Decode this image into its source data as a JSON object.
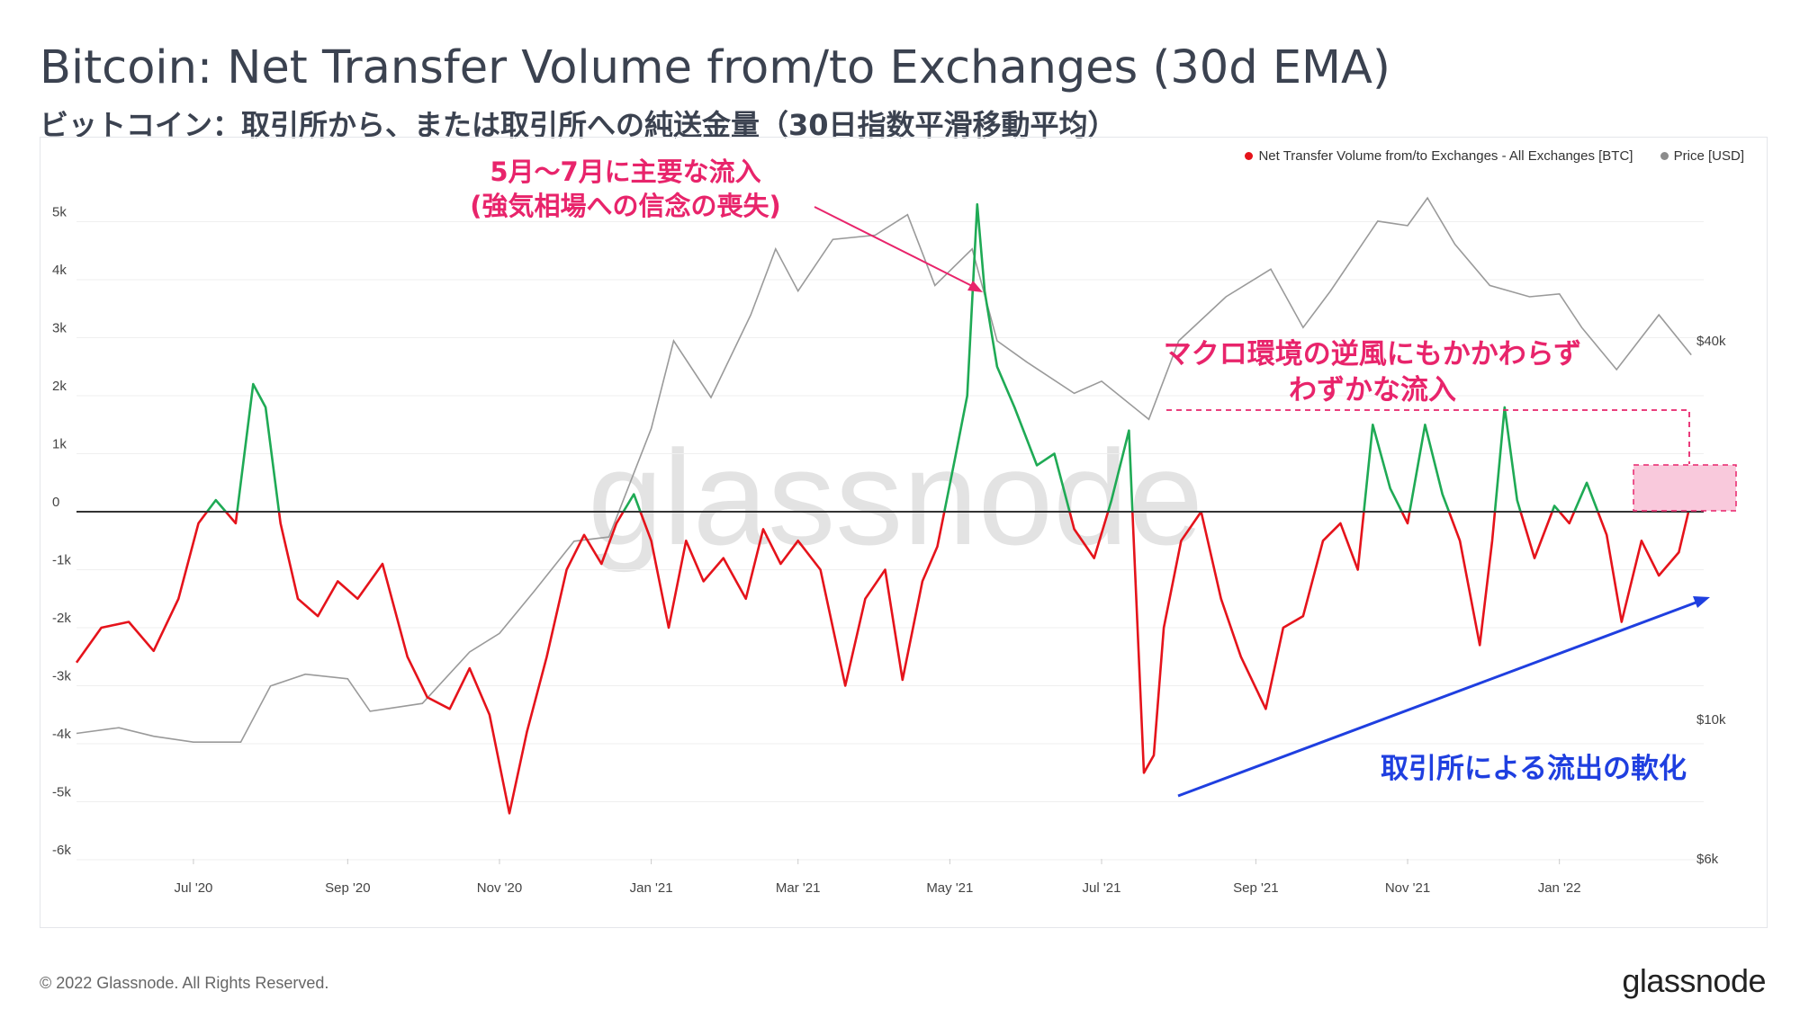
{
  "header": {
    "title": "Bitcoin: Net Transfer Volume from/to Exchanges (30d EMA)",
    "subtitle": "ビットコイン：取引所から、または取引所への純送金量（30日指数平滑移動平均）"
  },
  "legend": {
    "net_label": "Net Transfer Volume from/to Exchanges - All Exchanges [BTC]",
    "price_label": "Price [USD]"
  },
  "annotations": {
    "inflow_line1": "5月〜7月に主要な流入",
    "inflow_line2": "(強気相場への信念の喪失)",
    "macro_line1": "マクロ環境の逆風にもかかわらず",
    "macro_line2": "わずかな流入",
    "outflow": "取引所による流出の軟化"
  },
  "watermark": "glassnode",
  "footer": {
    "copyright": "© 2022 Glassnode. All Rights Reserved.",
    "logo": "glassnode"
  },
  "colors": {
    "positive": "#1faa55",
    "negative": "#e5131b",
    "price": "#9a9a9a",
    "zero_line": "#333333",
    "annotation_pink": "#e8246b",
    "annotation_blue": "#1f3fe0",
    "highlight_fill": "#f9c9dc"
  },
  "chart_data": {
    "type": "line",
    "x_ticks": [
      "Jul '20",
      "Sep '20",
      "Nov '20",
      "Jan '21",
      "Mar '21",
      "May '21",
      "Jul '21",
      "Sep '21",
      "Nov '21",
      "Jan '22"
    ],
    "y_left_ticks": [
      "5k",
      "4k",
      "3k",
      "2k",
      "1k",
      "0",
      "-1k",
      "-2k",
      "-3k",
      "-4k",
      "-5k",
      "-6k"
    ],
    "y_right_ticks": [
      "$40k",
      "$10k",
      "$6k"
    ],
    "ylim_left": [
      -6000,
      5400
    ],
    "y_right_scale": "log",
    "xlim": [
      "2020-05-15",
      "2022-02-28"
    ],
    "series": [
      {
        "name": "Net Transfer Volume from/to Exchanges - All Exchanges [BTC]",
        "axis": "left",
        "x": [
          "2020-05-15",
          "2020-05-25",
          "2020-06-05",
          "2020-06-15",
          "2020-06-25",
          "2020-07-03",
          "2020-07-10",
          "2020-07-18",
          "2020-07-25",
          "2020-07-30",
          "2020-08-05",
          "2020-08-12",
          "2020-08-20",
          "2020-08-28",
          "2020-09-05",
          "2020-09-15",
          "2020-09-25",
          "2020-10-03",
          "2020-10-12",
          "2020-10-20",
          "2020-10-28",
          "2020-11-05",
          "2020-11-12",
          "2020-11-20",
          "2020-11-28",
          "2020-12-05",
          "2020-12-12",
          "2020-12-18",
          "2020-12-25",
          "2021-01-01",
          "2021-01-08",
          "2021-01-15",
          "2021-01-22",
          "2021-01-30",
          "2021-02-08",
          "2021-02-15",
          "2021-02-22",
          "2021-03-01",
          "2021-03-10",
          "2021-03-20",
          "2021-03-28",
          "2021-04-05",
          "2021-04-12",
          "2021-04-20",
          "2021-04-26",
          "2021-05-03",
          "2021-05-08",
          "2021-05-12",
          "2021-05-15",
          "2021-05-20",
          "2021-05-27",
          "2021-06-05",
          "2021-06-12",
          "2021-06-20",
          "2021-06-28",
          "2021-07-05",
          "2021-07-12",
          "2021-07-18",
          "2021-07-22",
          "2021-07-26",
          "2021-08-02",
          "2021-08-10",
          "2021-08-18",
          "2021-08-26",
          "2021-09-05",
          "2021-09-12",
          "2021-09-20",
          "2021-09-28",
          "2021-10-05",
          "2021-10-12",
          "2021-10-18",
          "2021-10-25",
          "2021-11-01",
          "2021-11-08",
          "2021-11-15",
          "2021-11-22",
          "2021-11-30",
          "2021-12-05",
          "2021-12-10",
          "2021-12-15",
          "2021-12-22",
          "2021-12-30",
          "2022-01-05",
          "2022-01-12",
          "2022-01-20",
          "2022-01-26",
          "2022-02-03",
          "2022-02-10",
          "2022-02-18",
          "2022-02-23"
        ],
        "y": [
          -2600,
          -2000,
          -1900,
          -2400,
          -1500,
          -200,
          200,
          -200,
          2200,
          1800,
          -200,
          -1500,
          -1800,
          -1200,
          -1500,
          -900,
          -2500,
          -3200,
          -3400,
          -2700,
          -3500,
          -5200,
          -3800,
          -2500,
          -1000,
          -400,
          -900,
          -200,
          300,
          -500,
          -2000,
          -500,
          -1200,
          -800,
          -1500,
          -300,
          -900,
          -500,
          -1000,
          -3000,
          -1500,
          -1000,
          -2900,
          -1200,
          -600,
          900,
          2000,
          5300,
          3800,
          2500,
          1800,
          800,
          1000,
          -300,
          -800,
          200,
          1400,
          -4500,
          -4200,
          -2000,
          -500,
          0,
          -1500,
          -2500,
          -3400,
          -2000,
          -1800,
          -500,
          -200,
          -1000,
          1500,
          400,
          -200,
          1500,
          300,
          -500,
          -2300,
          -500,
          1800,
          200,
          -800,
          100,
          -200,
          500,
          -400,
          -1900,
          -500,
          -1100,
          -700,
          200
        ]
      },
      {
        "name": "Price [USD]",
        "axis": "right",
        "x": [
          "2020-05-15",
          "2020-06-01",
          "2020-06-15",
          "2020-07-01",
          "2020-07-20",
          "2020-08-01",
          "2020-08-15",
          "2020-09-01",
          "2020-09-10",
          "2020-10-01",
          "2020-10-20",
          "2020-11-01",
          "2020-11-15",
          "2020-12-01",
          "2020-12-15",
          "2021-01-01",
          "2021-01-10",
          "2021-01-25",
          "2021-02-10",
          "2021-02-20",
          "2021-03-01",
          "2021-03-15",
          "2021-04-01",
          "2021-04-14",
          "2021-04-25",
          "2021-05-10",
          "2021-05-20",
          "2021-06-01",
          "2021-06-20",
          "2021-07-01",
          "2021-07-20",
          "2021-08-01",
          "2021-08-20",
          "2021-09-07",
          "2021-09-20",
          "2021-10-01",
          "2021-10-20",
          "2021-11-01",
          "2021-11-09",
          "2021-11-20",
          "2021-12-04",
          "2021-12-20",
          "2022-01-01",
          "2022-01-10",
          "2022-01-24",
          "2022-02-10",
          "2022-02-23"
        ],
        "y": [
          9500,
          9700,
          9400,
          9200,
          9200,
          11300,
          11800,
          11600,
          10300,
          10600,
          12800,
          13700,
          16000,
          19200,
          19500,
          29000,
          40000,
          32500,
          44000,
          56000,
          48000,
          58000,
          58900,
          63500,
          49000,
          56000,
          40000,
          37000,
          33000,
          34500,
          30000,
          40000,
          47000,
          52000,
          42000,
          48000,
          62000,
          61000,
          67500,
          57000,
          49000,
          47000,
          47500,
          42000,
          36000,
          44000,
          38000
        ]
      }
    ]
  }
}
